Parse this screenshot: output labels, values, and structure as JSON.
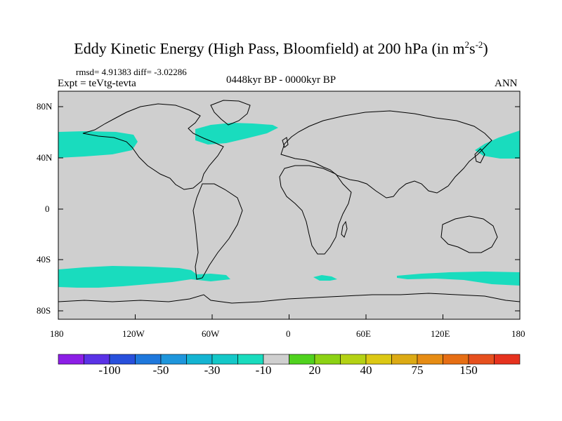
{
  "title": {
    "main": "Eddy Kinetic Energy (High Pass, Bloomfield) at 200 hPa (in m",
    "exp1": "2",
    "mid": "s",
    "exp2": "-2",
    "close": ")"
  },
  "stats": "rmsd= 4.91383 diff= -3.02286",
  "expt": "Expt = teVtg-tevta",
  "period": "0448kyr BP - 0000kyr BP",
  "season": "ANN",
  "lat_ticks": [
    "80N",
    "40N",
    "0",
    "40S",
    "80S"
  ],
  "lon_ticks": [
    "180",
    "120W",
    "60W",
    "0",
    "60E",
    "120E",
    "180"
  ],
  "colors": {
    "ocean": "#cfcfcf",
    "anomaly_fill": "#19dcbe",
    "coast": "#000000"
  },
  "colorbar": {
    "colors": [
      "#8c1ee6",
      "#5a32e6",
      "#2850dc",
      "#1e78dc",
      "#1e96dc",
      "#14b4d2",
      "#14c8c8",
      "#19dcbe",
      "#cfcfcf",
      "#50d21e",
      "#8cd214",
      "#b4d214",
      "#dcc814",
      "#dcaa14",
      "#e68c14",
      "#e66e14",
      "#e6501e",
      "#e6321e"
    ],
    "labels": [
      {
        "text": "-100",
        "after": 2
      },
      {
        "text": "-50",
        "after": 4
      },
      {
        "text": "-30",
        "after": 6
      },
      {
        "text": "-10",
        "after": 8
      },
      {
        "text": "20",
        "after": 10
      },
      {
        "text": "40",
        "after": 12
      },
      {
        "text": "75",
        "after": 14
      },
      {
        "text": "150",
        "after": 16
      }
    ]
  }
}
